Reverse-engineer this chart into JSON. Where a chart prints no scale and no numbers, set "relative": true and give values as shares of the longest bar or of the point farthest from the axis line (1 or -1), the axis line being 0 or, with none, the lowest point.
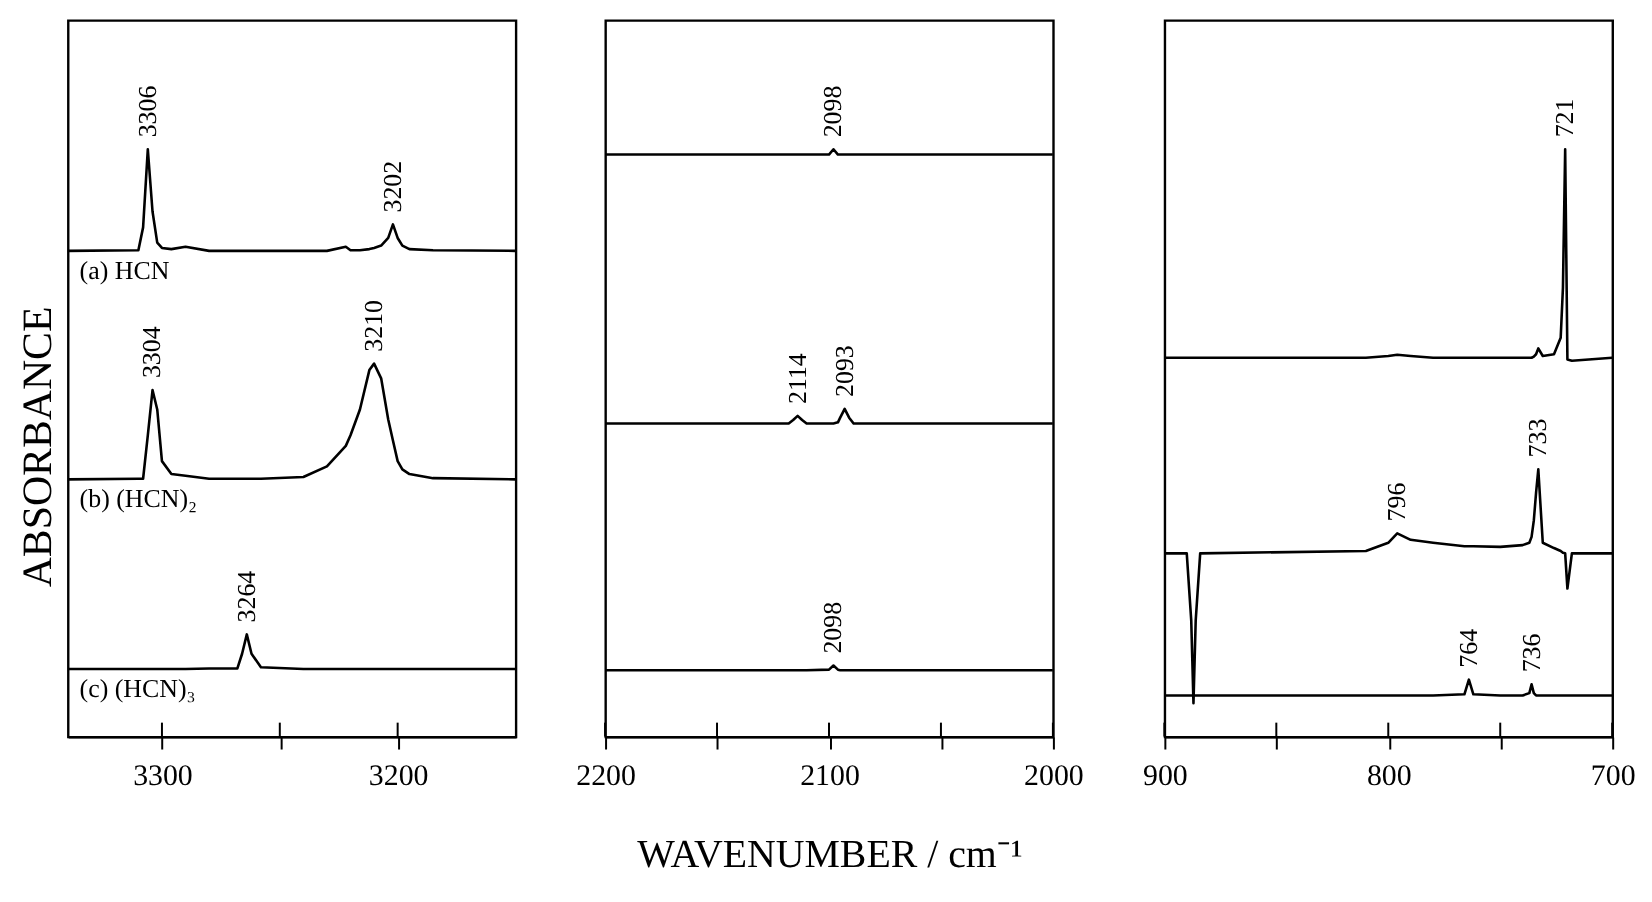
{
  "chart_data": [
    {
      "type": "line",
      "relative": true,
      "ylabel": "ABSORBANCE",
      "xlim": [
        3340,
        3150
      ],
      "xticks": [
        3300,
        {
          "value": 3250,
          "label": null
        },
        3200
      ],
      "x": [
        3340,
        3310,
        3308,
        3306,
        3304,
        3302,
        3300,
        3296,
        3290,
        3280,
        3268,
        3266,
        3264,
        3262,
        3258,
        3240,
        3230,
        3222,
        3220,
        3216,
        3212,
        3210,
        3207,
        3204,
        3202,
        3200,
        3198,
        3195,
        3185,
        3150
      ],
      "series": [
        {
          "name": "(a) HCN",
          "color": "#000000",
          "values": [
            0.827,
            0.828,
            0.867,
            1.0,
            0.894,
            0.841,
            0.832,
            0.83,
            0.834,
            0.827,
            0.827,
            0.827,
            0.827,
            0.827,
            0.827,
            0.827,
            0.827,
            0.834,
            0.828,
            0.828,
            0.83,
            0.832,
            0.836,
            0.849,
            0.872,
            0.849,
            0.836,
            0.83,
            0.828,
            0.827
          ]
        },
        {
          "name": "(b) (HCN)₂",
          "color": "#000000",
          "values": [
            0.438,
            0.439,
            0.439,
            0.513,
            0.59,
            0.557,
            0.469,
            0.447,
            0.444,
            0.439,
            0.439,
            0.439,
            0.439,
            0.439,
            0.439,
            0.442,
            0.46,
            0.495,
            0.513,
            0.557,
            0.624,
            0.635,
            0.61,
            0.54,
            0.504,
            0.469,
            0.455,
            0.447,
            0.44,
            0.438
          ]
        },
        {
          "name": "(c) (HCN)₃",
          "color": "#000000",
          "values": [
            0.115,
            0.115,
            0.115,
            0.115,
            0.115,
            0.115,
            0.115,
            0.115,
            0.115,
            0.116,
            0.116,
            0.141,
            0.174,
            0.141,
            0.118,
            0.115,
            0.115,
            0.115,
            0.115,
            0.115,
            0.115,
            0.115,
            0.115,
            0.115,
            0.115,
            0.115,
            0.115,
            0.115,
            0.115,
            0.115
          ]
        }
      ],
      "annotations": [
        {
          "text": "3306",
          "x": 3306,
          "y": 1.0
        },
        {
          "text": "3202",
          "x": 3202,
          "y": 0.872
        },
        {
          "text": "3304",
          "x": 3304,
          "y": 0.59
        },
        {
          "text": "3210",
          "x": 3210,
          "y": 0.635
        },
        {
          "text": "3264",
          "x": 3264,
          "y": 0.174
        }
      ]
    },
    {
      "type": "line",
      "relative": true,
      "xlabel": "WAVENUMBER / cm⁻¹",
      "xlim": [
        2200,
        2000
      ],
      "xticks": [
        2200,
        {
          "value": 2150,
          "label": null
        },
        2100,
        {
          "value": 2050,
          "label": null
        },
        2000
      ],
      "x": [
        2200,
        2118,
        2116,
        2114,
        2112,
        2110,
        2100,
        2098,
        2096,
        2095,
        2093,
        2091,
        2089,
        2000
      ],
      "series": [
        {
          "color": "#000000",
          "values": [
            0.991,
            0.991,
            0.991,
            0.991,
            0.991,
            0.991,
            0.991,
            1.0,
            0.991,
            0.991,
            0.991,
            0.991,
            0.991,
            0.991
          ]
        },
        {
          "color": "#000000",
          "values": [
            0.533,
            0.533,
            0.539,
            0.546,
            0.539,
            0.533,
            0.533,
            0.533,
            0.535,
            0.543,
            0.558,
            0.543,
            0.533,
            0.533
          ]
        },
        {
          "color": "#000000",
          "values": [
            0.113,
            0.113,
            0.113,
            0.113,
            0.113,
            0.113,
            0.114,
            0.121,
            0.114,
            0.113,
            0.113,
            0.113,
            0.113,
            0.113
          ]
        }
      ],
      "annotations": [
        {
          "text": "2098",
          "x": 2098,
          "y": 1.0
        },
        {
          "text": "2114",
          "x": 2114,
          "y": 0.546
        },
        {
          "text": "2093",
          "x": 2093,
          "y": 0.558
        },
        {
          "text": "2098",
          "x": 2098,
          "y": 0.121
        }
      ]
    },
    {
      "type": "line",
      "relative": true,
      "xlim": [
        900,
        700
      ],
      "xticks": [
        900,
        {
          "value": 850,
          "label": null
        },
        800,
        {
          "value": 750,
          "label": null
        },
        700
      ],
      "x": [
        900,
        890,
        888,
        887,
        886,
        884,
        810,
        800,
        796,
        790,
        780,
        766,
        764,
        762,
        750,
        740,
        737,
        736,
        735,
        734,
        733,
        731,
        726,
        723,
        722,
        721,
        720,
        718,
        700
      ],
      "series": [
        {
          "color": "#000000",
          "values": [
            0.645,
            0.645,
            0.645,
            0.645,
            0.645,
            0.645,
            0.645,
            0.648,
            0.65,
            0.648,
            0.645,
            0.645,
            0.645,
            0.645,
            0.645,
            0.645,
            0.645,
            0.645,
            0.647,
            0.651,
            0.661,
            0.648,
            0.651,
            0.679,
            0.764,
            1.0,
            0.642,
            0.64,
            0.645
          ]
        },
        {
          "color": "#000000",
          "values": [
            0.312,
            0.312,
            0.198,
            0.057,
            0.198,
            0.312,
            0.316,
            0.33,
            0.346,
            0.335,
            0.33,
            0.324,
            0.324,
            0.324,
            0.323,
            0.326,
            0.33,
            0.34,
            0.368,
            0.415,
            0.455,
            0.33,
            0.321,
            0.316,
            0.313,
            0.312,
            0.252,
            0.312,
            0.312
          ]
        },
        {
          "color": "#000000",
          "values": [
            0.07,
            0.07,
            0.07,
            0.07,
            0.07,
            0.07,
            0.07,
            0.07,
            0.07,
            0.07,
            0.07,
            0.072,
            0.097,
            0.072,
            0.07,
            0.07,
            0.074,
            0.089,
            0.074,
            0.07,
            0.07,
            0.07,
            0.07,
            0.07,
            0.07,
            0.07,
            0.07,
            0.07,
            0.07
          ]
        }
      ],
      "annotations": [
        {
          "text": "721",
          "x": 721,
          "y": 1.0
        },
        {
          "text": "796",
          "x": 796,
          "y": 0.346
        },
        {
          "text": "733",
          "x": 733,
          "y": 0.455
        },
        {
          "text": "764",
          "x": 764,
          "y": 0.097
        },
        {
          "text": "736",
          "x": 736,
          "y": 0.089
        }
      ]
    }
  ]
}
